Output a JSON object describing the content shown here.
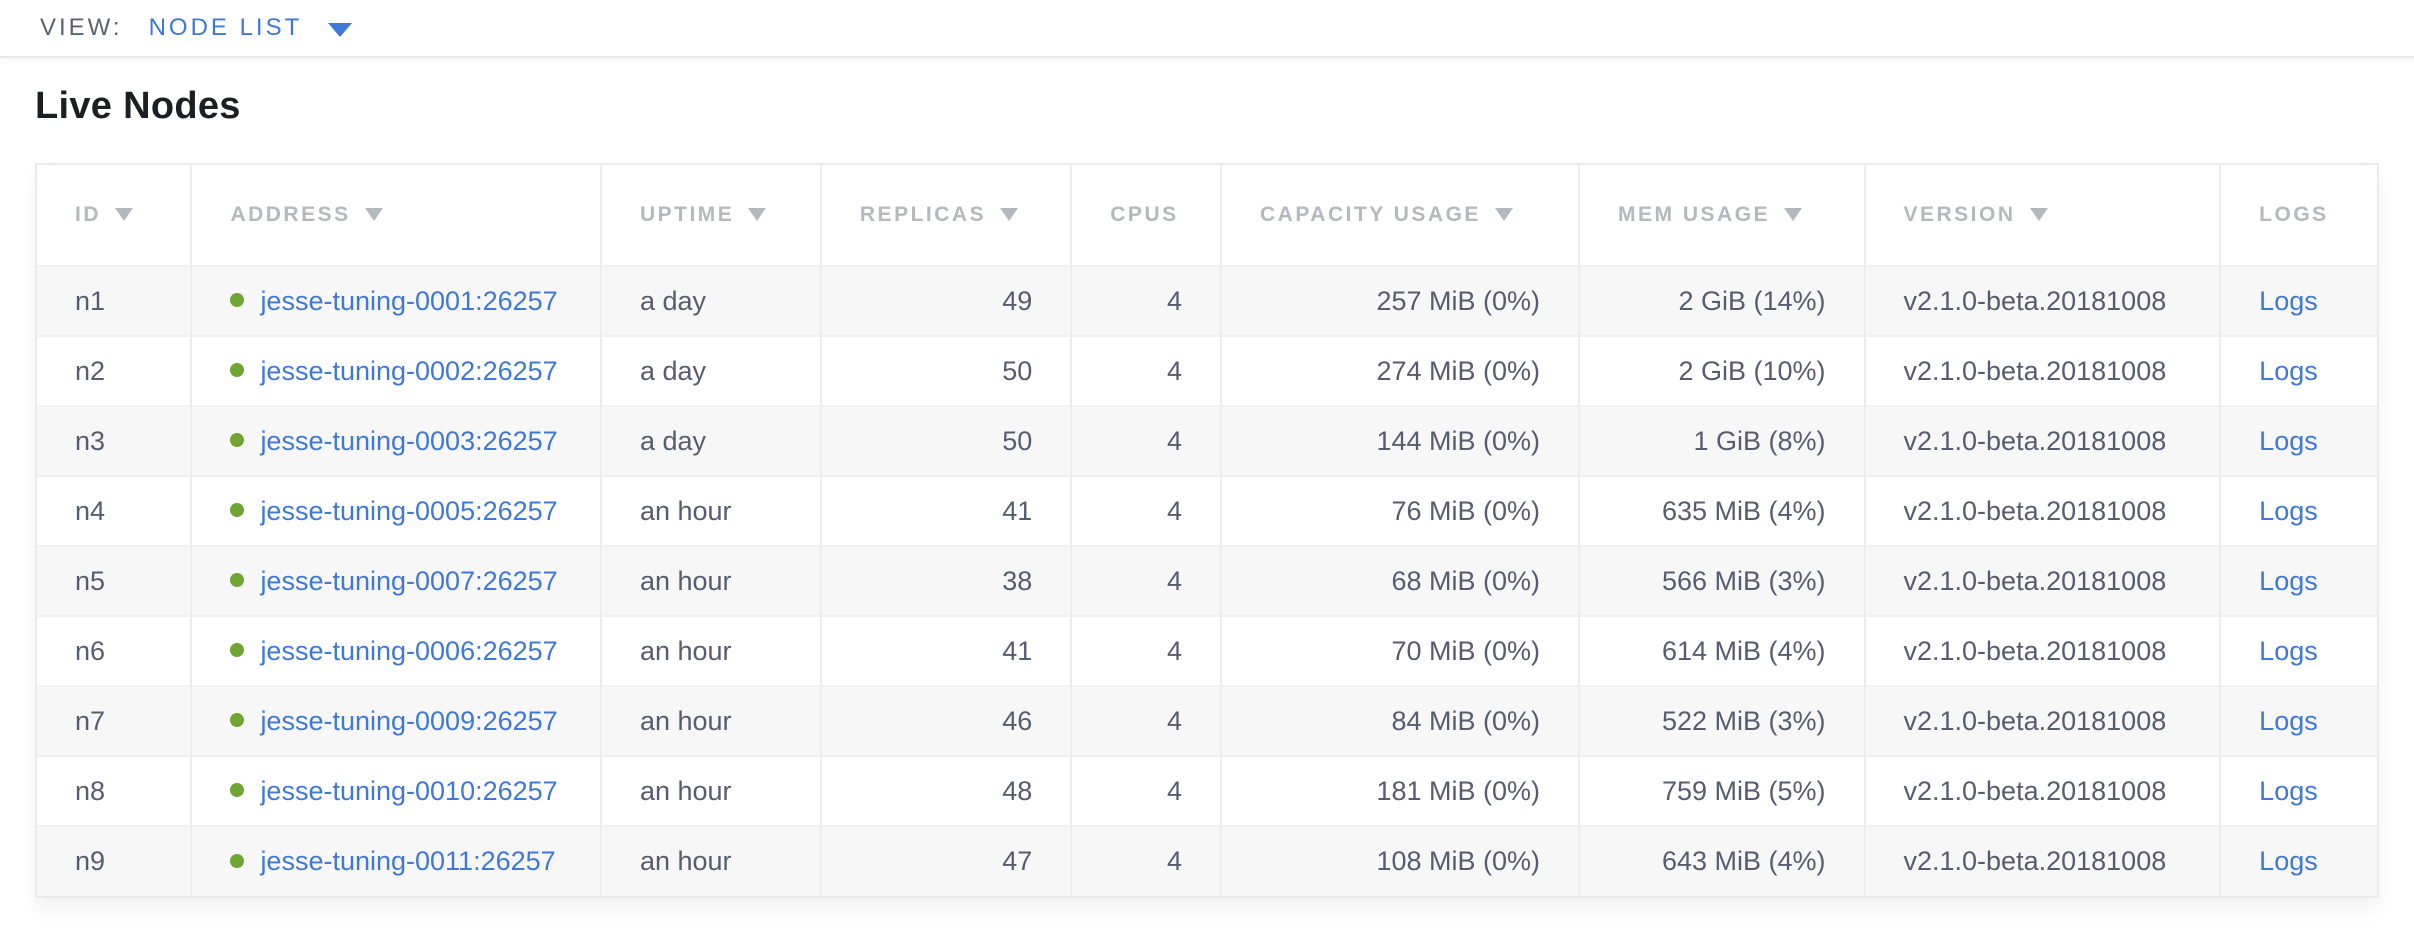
{
  "view_bar": {
    "label": "VIEW:",
    "selected": "NODE LIST",
    "caret_icon": "chevron-down"
  },
  "section": {
    "title": "Live Nodes"
  },
  "icons": {
    "sort": "sort-caret-down",
    "node_status": "green-dot"
  },
  "colors": {
    "link_blue": "#3e78d8",
    "status_green": "#70a533",
    "header_gray": "#b5b8bd",
    "text_dark": "#575c6e",
    "row_alt_bg": "#f7f7f8",
    "border": "#ededee"
  },
  "table": {
    "columns": [
      {
        "key": "id",
        "label": "ID",
        "sortable": true,
        "align": "left"
      },
      {
        "key": "address",
        "label": "ADDRESS",
        "sortable": true,
        "align": "left"
      },
      {
        "key": "uptime",
        "label": "UPTIME",
        "sortable": true,
        "align": "left"
      },
      {
        "key": "replicas",
        "label": "REPLICAS",
        "sortable": true,
        "align": "right"
      },
      {
        "key": "cpus",
        "label": "CPUS",
        "sortable": false,
        "align": "right"
      },
      {
        "key": "capacity",
        "label": "CAPACITY USAGE",
        "sortable": true,
        "align": "right"
      },
      {
        "key": "mem",
        "label": "MEM USAGE",
        "sortable": true,
        "align": "right"
      },
      {
        "key": "version",
        "label": "VERSION",
        "sortable": true,
        "align": "left"
      },
      {
        "key": "logs",
        "label": "LOGS",
        "sortable": false,
        "align": "left"
      }
    ],
    "rows": [
      {
        "id": "n1",
        "status": "live",
        "address": "jesse-tuning-0001:26257",
        "uptime": "a day",
        "replicas": "49",
        "cpus": "4",
        "capacity": "257 MiB (0%)",
        "mem": "2 GiB (14%)",
        "version": "v2.1.0-beta.20181008",
        "logs": "Logs"
      },
      {
        "id": "n2",
        "status": "live",
        "address": "jesse-tuning-0002:26257",
        "uptime": "a day",
        "replicas": "50",
        "cpus": "4",
        "capacity": "274 MiB (0%)",
        "mem": "2 GiB (10%)",
        "version": "v2.1.0-beta.20181008",
        "logs": "Logs"
      },
      {
        "id": "n3",
        "status": "live",
        "address": "jesse-tuning-0003:26257",
        "uptime": "a day",
        "replicas": "50",
        "cpus": "4",
        "capacity": "144 MiB (0%)",
        "mem": "1 GiB (8%)",
        "version": "v2.1.0-beta.20181008",
        "logs": "Logs"
      },
      {
        "id": "n4",
        "status": "live",
        "address": "jesse-tuning-0005:26257",
        "uptime": "an hour",
        "replicas": "41",
        "cpus": "4",
        "capacity": "76 MiB (0%)",
        "mem": "635 MiB (4%)",
        "version": "v2.1.0-beta.20181008",
        "logs": "Logs"
      },
      {
        "id": "n5",
        "status": "live",
        "address": "jesse-tuning-0007:26257",
        "uptime": "an hour",
        "replicas": "38",
        "cpus": "4",
        "capacity": "68 MiB (0%)",
        "mem": "566 MiB (3%)",
        "version": "v2.1.0-beta.20181008",
        "logs": "Logs"
      },
      {
        "id": "n6",
        "status": "live",
        "address": "jesse-tuning-0006:26257",
        "uptime": "an hour",
        "replicas": "41",
        "cpus": "4",
        "capacity": "70 MiB (0%)",
        "mem": "614 MiB (4%)",
        "version": "v2.1.0-beta.20181008",
        "logs": "Logs"
      },
      {
        "id": "n7",
        "status": "live",
        "address": "jesse-tuning-0009:26257",
        "uptime": "an hour",
        "replicas": "46",
        "cpus": "4",
        "capacity": "84 MiB (0%)",
        "mem": "522 MiB (3%)",
        "version": "v2.1.0-beta.20181008",
        "logs": "Logs"
      },
      {
        "id": "n8",
        "status": "live",
        "address": "jesse-tuning-0010:26257",
        "uptime": "an hour",
        "replicas": "48",
        "cpus": "4",
        "capacity": "181 MiB (0%)",
        "mem": "759 MiB (5%)",
        "version": "v2.1.0-beta.20181008",
        "logs": "Logs"
      },
      {
        "id": "n9",
        "status": "live",
        "address": "jesse-tuning-0011:26257",
        "uptime": "an hour",
        "replicas": "47",
        "cpus": "4",
        "capacity": "108 MiB (0%)",
        "mem": "643 MiB (4%)",
        "version": "v2.1.0-beta.20181008",
        "logs": "Logs"
      }
    ]
  }
}
